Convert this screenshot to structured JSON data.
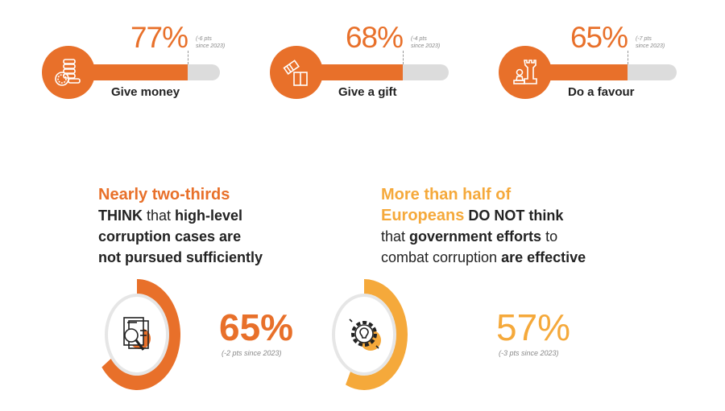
{
  "colors": {
    "orange": "#e8702a",
    "yellow": "#f5a93b",
    "track": "#dcdcdc"
  },
  "bars": [
    {
      "label": "Give money",
      "value": "77%",
      "note_line1": "(-6 pts",
      "note_line2": "since 2023)",
      "icon": "coins-icon"
    },
    {
      "label": "Give a gift",
      "value": "68%",
      "note_line1": "(-4 pts",
      "note_line2": "since 2023)",
      "icon": "gift-icon"
    },
    {
      "label": "Do a favour",
      "value": "65%",
      "note_line1": "(-7 pts",
      "note_line2": "since 2023)",
      "icon": "chess-icon"
    }
  ],
  "left": {
    "highlight": "Nearly two-thirds",
    "l2a": "THINK",
    "l2b": " that ",
    "l2c": "high-level",
    "l3": "corruption cases are",
    "l4": "not pursued sufficiently",
    "value": "65%",
    "note": "(-2 pts since 2023)",
    "icon": "document-search-icon"
  },
  "right": {
    "highlight1": "More than half of",
    "highlight2": "Europeans",
    "l2b": " DO NOT think",
    "l3a": "that ",
    "l3b": "government efforts",
    "l3c": " to",
    "l4a": "combat corruption ",
    "l4b": "are effective",
    "value": "57%",
    "note": "(-3 pts since 2023)",
    "icon": "gear-lightbulb-icon"
  },
  "chart_data": [
    {
      "type": "bar",
      "categories": [
        "Give money",
        "Give a gift",
        "Do a favour"
      ],
      "values": [
        77,
        68,
        65
      ],
      "changes_since_2023": [
        -6,
        -4,
        -7
      ],
      "ylim": [
        0,
        100
      ]
    },
    {
      "type": "pie",
      "title": "Nearly two-thirds THINK that high-level corruption cases are not pursued sufficiently",
      "values": [
        65,
        35
      ],
      "change_since_2023": -2
    },
    {
      "type": "pie",
      "title": "More than half of Europeans DO NOT think that government efforts to combat corruption are effective",
      "values": [
        57,
        43
      ],
      "change_since_2023": -3
    }
  ]
}
